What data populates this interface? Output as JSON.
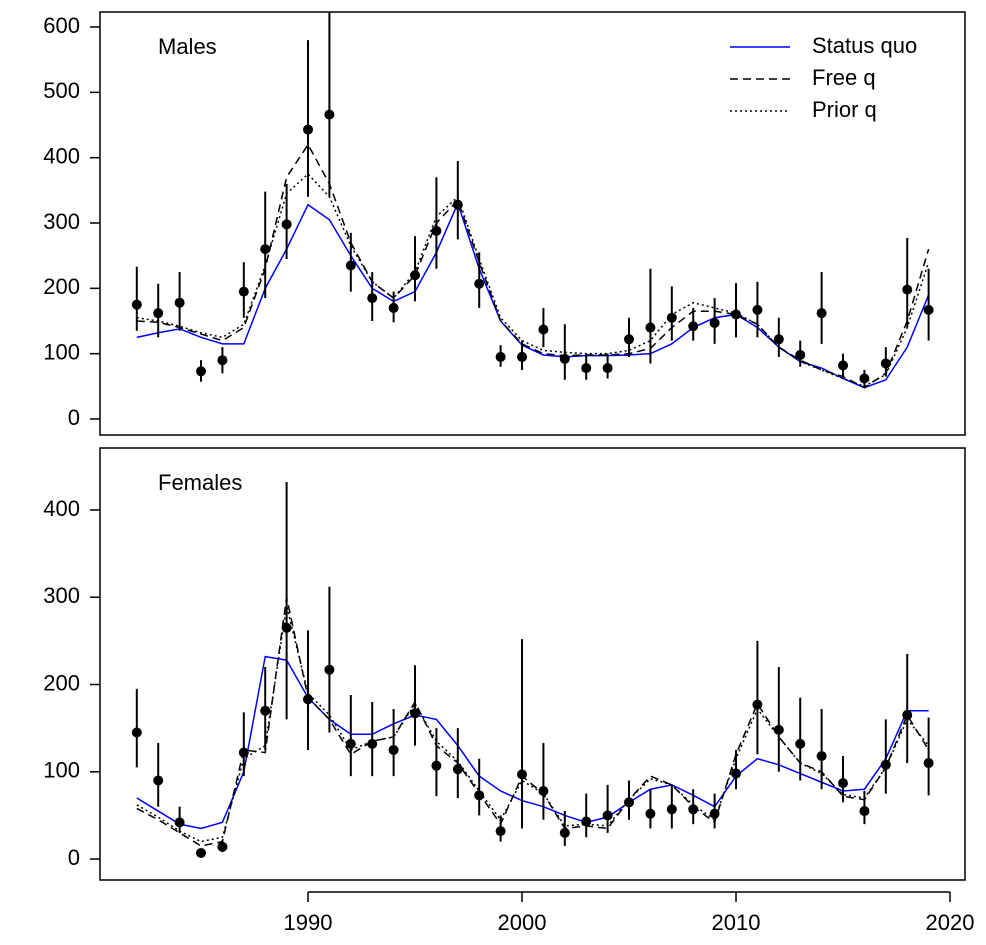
{
  "chart_data": [
    {
      "type": "line",
      "panel_label": "Males",
      "legend": "top-right",
      "x": [
        1982,
        1983,
        1984,
        1985,
        1986,
        1987,
        1988,
        1989,
        1990,
        1991,
        1992,
        1993,
        1994,
        1995,
        1996,
        1997,
        1998,
        1999,
        2000,
        2001,
        2002,
        2003,
        2004,
        2005,
        2006,
        2007,
        2008,
        2009,
        2010,
        2011,
        2012,
        2013,
        2014,
        2015,
        2016,
        2017,
        2018,
        2019
      ],
      "xlim": [
        1980.28,
        2020.7
      ],
      "ylim": [
        -24.5,
        623
      ],
      "yticks": [
        0,
        100,
        200,
        300,
        400,
        500,
        600
      ],
      "points": {
        "color": "#000000",
        "values": [
          175,
          162,
          178,
          73,
          90,
          195,
          260,
          298,
          443,
          466,
          235,
          185,
          170,
          220,
          288,
          328,
          207,
          95,
          95,
          137,
          92,
          78,
          78,
          122,
          140,
          155,
          142,
          147,
          160,
          167,
          122,
          98,
          162,
          82,
          62,
          85,
          198,
          167
        ],
        "lower": [
          135,
          125,
          135,
          57,
          70,
          155,
          185,
          245,
          340,
          340,
          195,
          150,
          148,
          180,
          230,
          275,
          170,
          80,
          75,
          110,
          60,
          60,
          62,
          95,
          85,
          120,
          120,
          115,
          125,
          125,
          95,
          80,
          115,
          65,
          50,
          65,
          140,
          120
        ],
        "upper": [
          233,
          207,
          225,
          90,
          110,
          240,
          348,
          360,
          580,
          640,
          285,
          225,
          195,
          280,
          370,
          395,
          255,
          113,
          120,
          170,
          145,
          100,
          100,
          155,
          230,
          203,
          170,
          185,
          208,
          210,
          155,
          120,
          225,
          100,
          75,
          110,
          277,
          230
        ]
      },
      "series": [
        {
          "name": "Status quo",
          "color": "#0000ff",
          "dash": "solid",
          "values": [
            125,
            132,
            138,
            125,
            115,
            115,
            200,
            260,
            328,
            305,
            250,
            200,
            180,
            195,
            255,
            330,
            230,
            150,
            113,
            98,
            95,
            97,
            97,
            98,
            100,
            115,
            140,
            155,
            160,
            140,
            110,
            88,
            78,
            62,
            48,
            60,
            110,
            190
          ]
        },
        {
          "name": "Free q",
          "color": "#000000",
          "dash": "dashed",
          "values": [
            150,
            148,
            140,
            130,
            120,
            140,
            230,
            370,
            420,
            360,
            270,
            210,
            185,
            220,
            300,
            335,
            240,
            150,
            115,
            100,
            97,
            98,
            98,
            100,
            108,
            140,
            165,
            165,
            160,
            145,
            110,
            90,
            75,
            65,
            48,
            70,
            150,
            260
          ]
        },
        {
          "name": "Prior q",
          "color": "#000000",
          "dash": "dotted",
          "values": [
            155,
            150,
            142,
            132,
            125,
            145,
            235,
            345,
            375,
            340,
            265,
            210,
            185,
            225,
            310,
            340,
            245,
            155,
            120,
            105,
            102,
            100,
            100,
            105,
            120,
            160,
            178,
            170,
            162,
            145,
            110,
            88,
            75,
            62,
            50,
            68,
            140,
            240
          ]
        }
      ]
    },
    {
      "type": "line",
      "panel_label": "Females",
      "x": [
        1982,
        1983,
        1984,
        1985,
        1986,
        1987,
        1988,
        1989,
        1990,
        1991,
        1992,
        1993,
        1994,
        1995,
        1996,
        1997,
        1998,
        1999,
        2000,
        2001,
        2002,
        2003,
        2004,
        2005,
        2006,
        2007,
        2008,
        2009,
        2010,
        2011,
        2012,
        2013,
        2014,
        2015,
        2016,
        2017,
        2018,
        2019
      ],
      "xlim": [
        1980.28,
        2020.7
      ],
      "xticks": [
        1990,
        2000,
        2010,
        2020
      ],
      "ylim": [
        -24,
        471
      ],
      "yticks": [
        0,
        100,
        200,
        300,
        400
      ],
      "points": {
        "color": "#000000",
        "values": [
          145,
          90,
          42,
          7,
          14,
          122,
          170,
          265,
          183,
          217,
          132,
          132,
          125,
          167,
          107,
          103,
          73,
          32,
          97,
          78,
          30,
          43,
          50,
          65,
          52,
          57,
          57,
          52,
          98,
          177,
          148,
          132,
          118,
          87,
          55,
          108,
          165,
          110
        ],
        "lower": [
          105,
          60,
          30,
          3,
          8,
          95,
          125,
          160,
          125,
          145,
          95,
          95,
          95,
          130,
          72,
          70,
          50,
          20,
          35,
          45,
          15,
          25,
          30,
          45,
          35,
          35,
          40,
          35,
          80,
          120,
          100,
          90,
          80,
          65,
          40,
          75,
          110,
          73
        ],
        "upper": [
          195,
          133,
          60,
          12,
          22,
          168,
          220,
          432,
          262,
          312,
          188,
          180,
          172,
          222,
          150,
          150,
          115,
          50,
          252,
          133,
          55,
          75,
          85,
          90,
          80,
          85,
          80,
          75,
          125,
          250,
          220,
          185,
          172,
          118,
          78,
          160,
          235,
          162
        ]
      },
      "series": [
        {
          "color": "#0000ff",
          "dash": "solid",
          "values": [
            70,
            55,
            40,
            35,
            42,
            100,
            232,
            228,
            185,
            160,
            143,
            143,
            155,
            165,
            160,
            130,
            95,
            78,
            67,
            60,
            50,
            42,
            48,
            65,
            80,
            85,
            73,
            60,
            95,
            115,
            108,
            98,
            88,
            78,
            80,
            115,
            170,
            170
          ]
        },
        {
          "color": "#000000",
          "dash": "dashed",
          "values": [
            58,
            45,
            30,
            15,
            20,
            125,
            122,
            300,
            185,
            160,
            120,
            135,
            140,
            180,
            130,
            110,
            75,
            40,
            95,
            75,
            35,
            38,
            35,
            68,
            95,
            85,
            60,
            42,
            120,
            178,
            140,
            110,
            100,
            72,
            68,
            105,
            165,
            125
          ]
        },
        {
          "color": "#000000",
          "dash": "dotted",
          "values": [
            62,
            48,
            32,
            20,
            25,
            115,
            130,
            290,
            190,
            165,
            125,
            135,
            140,
            178,
            135,
            112,
            78,
            45,
            90,
            75,
            38,
            40,
            38,
            68,
            92,
            85,
            62,
            45,
            115,
            172,
            140,
            110,
            98,
            74,
            70,
            105,
            160,
            130
          ]
        }
      ]
    }
  ]
}
